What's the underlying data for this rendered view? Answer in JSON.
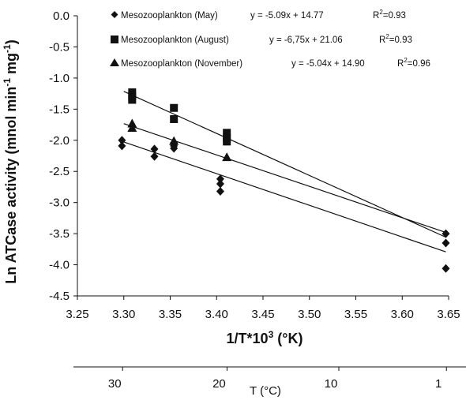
{
  "chart_data": {
    "type": "scatter",
    "xlabel": "1/T*10",
    "xlabel_sup": "3",
    "xlabel_unit": " (°K)",
    "ylabel": "Ln ATCase activity (mnol min",
    "ylabel_sup1": "-1",
    "ylabel_mid": " mg",
    "ylabel_sup2": "-1",
    "ylabel_end": ")",
    "xlim": [
      3.25,
      3.65
    ],
    "ylim": [
      -4.5,
      0.0
    ],
    "x_ticks": [
      "3.25",
      "3.30",
      "3.35",
      "3.40",
      "3.45",
      "3.50",
      "3.55",
      "3.60",
      "3.65"
    ],
    "x_tick_values": [
      3.25,
      3.3,
      3.35,
      3.4,
      3.45,
      3.5,
      3.55,
      3.6,
      3.65
    ],
    "y_ticks": [
      "0.0",
      "-0.5",
      "-1.0",
      "-1.5",
      "-2.0",
      "-2.5",
      "-3.0",
      "-3.5",
      "-4.0",
      "-4.5"
    ],
    "y_tick_values": [
      0.0,
      -0.5,
      -1.0,
      -1.5,
      -2.0,
      -2.5,
      -3.0,
      -3.5,
      -4.0,
      -4.5
    ],
    "grid": false,
    "legend_position": "top",
    "series": [
      {
        "name": "Mesozooplankton (May)",
        "equation": "y = -5.09x + 14.77",
        "r2_label": "R",
        "r2_sup": "2",
        "r2_value": "=0.93",
        "marker": "diamond",
        "slope": -5.09,
        "intercept": 14.77,
        "fit_range": [
          3.3,
          3.647
        ],
        "points": [
          {
            "x": 3.298,
            "y": -2.0
          },
          {
            "x": 3.298,
            "y": -2.09
          },
          {
            "x": 3.333,
            "y": -2.14
          },
          {
            "x": 3.333,
            "y": -2.26
          },
          {
            "x": 3.354,
            "y": -2.04
          },
          {
            "x": 3.354,
            "y": -2.09
          },
          {
            "x": 3.354,
            "y": -2.13
          },
          {
            "x": 3.404,
            "y": -2.62
          },
          {
            "x": 3.404,
            "y": -2.7
          },
          {
            "x": 3.404,
            "y": -2.82
          },
          {
            "x": 3.647,
            "y": -3.5
          },
          {
            "x": 3.647,
            "y": -3.65
          },
          {
            "x": 3.647,
            "y": -4.06
          }
        ]
      },
      {
        "name": "Mesozooplankton (August)",
        "equation": "y = -6,75x + 21.06",
        "r2_label": "R",
        "r2_sup": "2",
        "r2_value": "=0.93",
        "marker": "square",
        "slope": -6.75,
        "intercept": 21.06,
        "fit_range": [
          3.3,
          3.647
        ],
        "points": [
          {
            "x": 3.309,
            "y": -1.23
          },
          {
            "x": 3.309,
            "y": -1.29
          },
          {
            "x": 3.309,
            "y": -1.35
          },
          {
            "x": 3.354,
            "y": -1.48
          },
          {
            "x": 3.354,
            "y": -1.66
          },
          {
            "x": 3.411,
            "y": -1.88
          },
          {
            "x": 3.411,
            "y": -1.96
          },
          {
            "x": 3.411,
            "y": -2.02
          }
        ]
      },
      {
        "name": "Mesozooplankton (November)",
        "equation": "y = -5.04x + 14.90",
        "r2_label": "R",
        "r2_sup": "2",
        "r2_value": "=0.96",
        "marker": "triangle",
        "slope": -5.04,
        "intercept": 14.9,
        "fit_range": [
          3.3,
          3.647
        ],
        "points": [
          {
            "x": 3.309,
            "y": -1.73
          },
          {
            "x": 3.309,
            "y": -1.8
          },
          {
            "x": 3.354,
            "y": -2.01
          },
          {
            "x": 3.411,
            "y": -2.27
          }
        ]
      }
    ],
    "temperature_axis": {
      "label": "T (°C)",
      "ticks": [
        "30",
        "20",
        "10",
        "1"
      ],
      "tick_values": [
        30,
        20,
        10,
        1
      ]
    }
  }
}
